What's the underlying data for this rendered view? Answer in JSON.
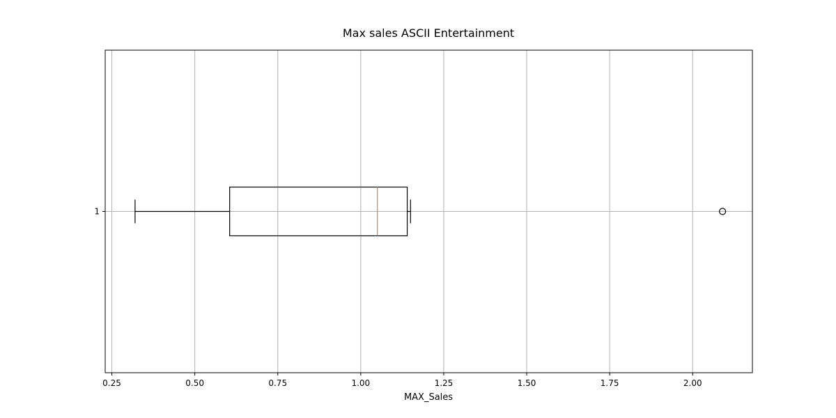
{
  "chart_data": {
    "type": "boxplot",
    "orientation": "horizontal",
    "title": "Max sales ASCII Entertainment",
    "xlabel": "MAX_Sales",
    "ylabel": "",
    "xlim": [
      0.23,
      2.18
    ],
    "xticks": [
      0.25,
      0.5,
      0.75,
      1.0,
      1.25,
      1.5,
      1.75,
      2.0
    ],
    "xtick_labels": [
      "0.25",
      "0.50",
      "0.75",
      "1.00",
      "1.25",
      "1.50",
      "1.75",
      "2.00"
    ],
    "ytick_labels": [
      "1"
    ],
    "grid": true,
    "boxes": [
      {
        "label": "1",
        "whisker_low": 0.32,
        "q1": 0.605,
        "median": 1.05,
        "q3": 1.14,
        "whisker_high": 1.15,
        "outliers": [
          2.09
        ]
      }
    ],
    "colors": {
      "box": "#000000",
      "median": "#ff7f0e",
      "grid": "#b0b0b0"
    }
  }
}
